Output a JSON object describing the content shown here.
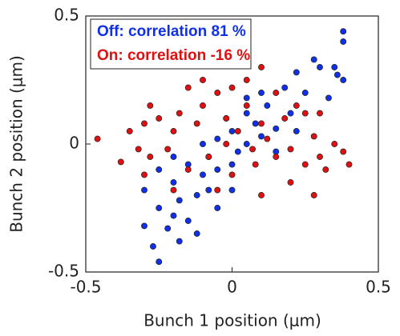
{
  "chart_data": {
    "type": "scatter",
    "xlabel": "Bunch 1 position (μm)",
    "ylabel": "Bunch 2 position (μm)",
    "xlim": [
      -0.5,
      0.5
    ],
    "ylim": [
      -0.5,
      0.5
    ],
    "xticks": [
      -0.5,
      0,
      0.5
    ],
    "yticks": [
      -0.5,
      0,
      0.5
    ],
    "legend": "upper left",
    "series": [
      {
        "name": "Off: correlation 81 %",
        "color": "#1030e8",
        "x": [
          -0.25,
          -0.27,
          -0.3,
          -0.22,
          -0.2,
          -0.15,
          -0.25,
          -0.18,
          -0.12,
          -0.08,
          -0.3,
          -0.2,
          -0.1,
          -0.05,
          0,
          -0.15,
          -0.08,
          0.02,
          0.05,
          -0.05,
          0.1,
          0,
          0.08,
          0.15,
          -0.02,
          0.05,
          0.12,
          0.2,
          0.1,
          0.18,
          0.25,
          0.22,
          0.3,
          0.28,
          0.35,
          0.38,
          0.38,
          0.36,
          0.38,
          0.33,
          -0.2,
          -0.1,
          0,
          -0.05,
          0.15,
          -0.25,
          -0.12,
          -0.18,
          0.22,
          0.05
        ],
        "values": [
          -0.46,
          -0.4,
          -0.32,
          -0.33,
          -0.28,
          -0.3,
          -0.25,
          -0.22,
          -0.2,
          -0.18,
          -0.18,
          -0.15,
          -0.12,
          -0.1,
          -0.08,
          -0.08,
          -0.05,
          -0.03,
          0,
          0.02,
          0.03,
          0.05,
          0.08,
          0.06,
          0.1,
          0.12,
          0.15,
          0.12,
          0.2,
          0.22,
          0.2,
          0.28,
          0.3,
          0.33,
          0.3,
          0.44,
          0.4,
          0.27,
          0.25,
          0.18,
          -0.05,
          0,
          -0.18,
          -0.25,
          -0.03,
          -0.1,
          -0.35,
          -0.38,
          0.05,
          0.18
        ]
      },
      {
        "name": "On: correlation -16 %",
        "color": "#e01010",
        "x": [
          -0.46,
          -0.38,
          -0.35,
          -0.32,
          -0.3,
          -0.28,
          -0.25,
          -0.22,
          -0.2,
          -0.18,
          -0.15,
          -0.12,
          -0.1,
          -0.08,
          -0.05,
          -0.02,
          0,
          0.02,
          0.05,
          0.08,
          0.1,
          0.12,
          0.15,
          0.18,
          0.2,
          0.22,
          0.25,
          0.28,
          0.3,
          0.32,
          0.35,
          0.38,
          0.4,
          0.28,
          0.2,
          0.05,
          0,
          -0.1,
          -0.3,
          -0.15,
          0.15,
          -0.05,
          -0.2,
          0.1,
          -0.28,
          0.3,
          0.1,
          0.25,
          -0.02,
          0.07
        ],
        "values": [
          0.02,
          -0.07,
          0.05,
          -0.02,
          0.08,
          -0.05,
          0.1,
          -0.02,
          0.05,
          0.12,
          -0.1,
          0.08,
          0.15,
          -0.05,
          0.2,
          0.1,
          -0.12,
          0.05,
          0.15,
          -0.08,
          0.08,
          0.02,
          -0.05,
          0.1,
          -0.02,
          0.15,
          -0.08,
          0.03,
          -0.05,
          -0.1,
          0,
          -0.03,
          -0.08,
          -0.2,
          -0.15,
          0.25,
          0.22,
          0.25,
          -0.12,
          0.22,
          0.2,
          -0.18,
          -0.18,
          -0.2,
          0.15,
          0.12,
          0.3,
          0.12,
          0,
          -0.02
        ]
      }
    ]
  }
}
